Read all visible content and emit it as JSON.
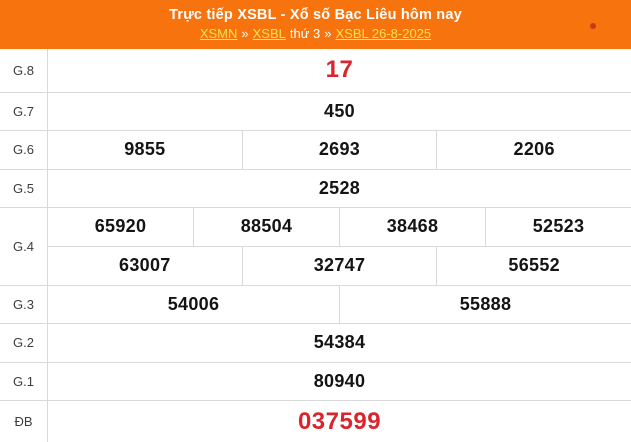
{
  "header": {
    "title": "Trực tiếp XSBL - Xổ số Bạc Liêu hôm nay",
    "breadcrumb": {
      "link_xsmn": "XSMN",
      "sep1": "»",
      "link_xsbl": "XSBL",
      "weekday": "thứ 3",
      "sep2": "»",
      "link_date": "XSBL 26-8-2025"
    }
  },
  "colors": {
    "header_bg": "#f7730e",
    "link_yellow": "#ffe14d",
    "number_red": "#d9252b",
    "number_black": "#141414",
    "border_gray": "#d9d9d9",
    "live_dot": "#c8391b"
  },
  "results": {
    "rows": [
      {
        "id": "g8",
        "label": "G.8",
        "highlight": true,
        "lines": [
          [
            "17"
          ]
        ]
      },
      {
        "id": "g7",
        "label": "G.7",
        "highlight": false,
        "lines": [
          [
            "450"
          ]
        ]
      },
      {
        "id": "g6",
        "label": "G.6",
        "highlight": false,
        "lines": [
          [
            "9855",
            "2693",
            "2206"
          ]
        ]
      },
      {
        "id": "g5",
        "label": "G.5",
        "highlight": false,
        "lines": [
          [
            "2528"
          ]
        ]
      },
      {
        "id": "g4",
        "label": "G.4",
        "highlight": false,
        "lines": [
          [
            "65920",
            "88504",
            "38468",
            "52523"
          ],
          [
            "63007",
            "32747",
            "56552"
          ]
        ]
      },
      {
        "id": "g3",
        "label": "G.3",
        "highlight": false,
        "lines": [
          [
            "54006",
            "55888"
          ]
        ]
      },
      {
        "id": "g2",
        "label": "G.2",
        "highlight": false,
        "lines": [
          [
            "54384"
          ]
        ]
      },
      {
        "id": "g1",
        "label": "G.1",
        "highlight": false,
        "lines": [
          [
            "80940"
          ]
        ]
      },
      {
        "id": "db",
        "label": "ĐB",
        "highlight": true,
        "lines": [
          [
            "037599"
          ]
        ]
      }
    ]
  }
}
